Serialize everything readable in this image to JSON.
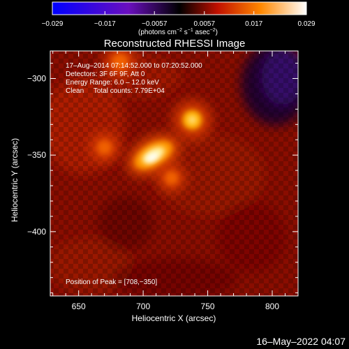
{
  "chart_data": {
    "type": "heatmap",
    "title": "Reconstructed RHESSI Image",
    "xlabel": "Heliocentric X (arcsec)",
    "ylabel": "Heliocentric Y (arcsec)",
    "xlim": [
      628,
      820
    ],
    "ylim": [
      -442,
      -282
    ],
    "x_ticks": [
      650,
      700,
      750,
      800
    ],
    "y_ticks": [
      -300,
      -350,
      -400
    ],
    "x_tick_labels": [
      "650",
      "700",
      "750",
      "800"
    ],
    "y_tick_labels": [
      "−300",
      "−350",
      "−400"
    ],
    "colorbar": {
      "range": [
        -0.029,
        0.029
      ],
      "ticks": [
        -0.029,
        -0.017,
        -0.0057,
        0.0057,
        0.017,
        0.029
      ],
      "tick_labels": [
        "−0.029",
        "−0.017",
        "−0.0057",
        "0.0057",
        "0.017",
        "0.029"
      ],
      "label_pre": "(photons cm",
      "label_exp1": "−2",
      "label_mid1": " s",
      "label_exp2": "−1",
      "label_mid2": " asec",
      "label_exp3": "−2",
      "label_post": ")"
    },
    "annotations": [
      "17–Aug–2014 07:14:52.000 to 07:20:52.000",
      "Detectors: 3F 6F 9F, Att 0",
      "Energy Range: 6.0 – 12.0 keV",
      "Clean     Total counts: 7.79E+04",
      "Position of Peak = [708,−350]"
    ],
    "sources": [
      {
        "x": 708,
        "y": -350,
        "intensity": 0.029
      },
      {
        "x": 738,
        "y": -327,
        "intensity": 0.021
      },
      {
        "x": 682,
        "y": -289,
        "intensity": 0.016
      },
      {
        "x": 670,
        "y": -345,
        "intensity": 0.013
      },
      {
        "x": 722,
        "y": -365,
        "intensity": 0.012
      }
    ],
    "negative_region": {
      "x": 800,
      "y": -290,
      "intensity": -0.012
    }
  },
  "footer": {
    "timestamp": "16–May–2022 04:07"
  },
  "colors": {
    "background": "#000000",
    "colormap": [
      "#0000ff",
      "#6a0fbe",
      "#000000",
      "#c01000",
      "#ff8800",
      "#ffffff"
    ]
  }
}
